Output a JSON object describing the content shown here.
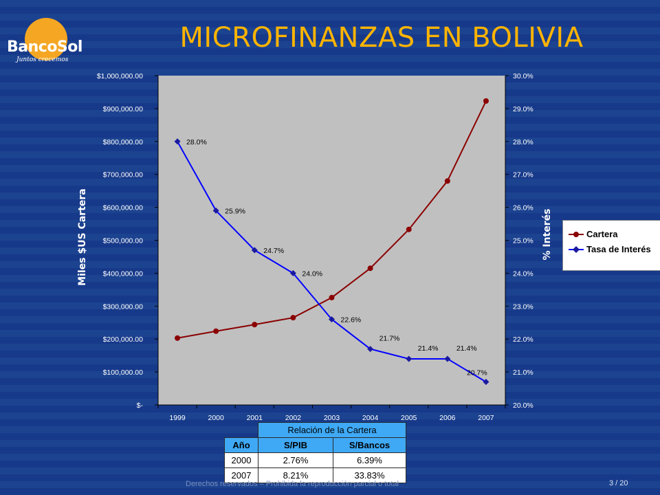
{
  "slide": {
    "title": "MICROFINANZAS EN BOLIVIA",
    "logo_name": "BancoSol",
    "logo_tagline": "Juntos crecemos",
    "footer": "Derechos reservados – Prohibida la reproducción parcial o total",
    "page_number": "3 / 20"
  },
  "colors": {
    "background": "#1a3f8c",
    "title": "#ffb400",
    "plot_area": "#c0c0c0",
    "cartera": "#8b0000",
    "tasa": "#0000ff",
    "table_header": "#3fa9f5"
  },
  "chart_data": {
    "type": "line",
    "categories": [
      "1999",
      "2000",
      "2001",
      "2002",
      "2003",
      "2004",
      "2005",
      "2006",
      "2007"
    ],
    "ylabel": "Miles $US Cartera",
    "y2label": "% Interés",
    "ylim": [
      0,
      1000000
    ],
    "y2lim": [
      20.0,
      30.0
    ],
    "y_ticks": [
      "$-",
      "$100,000.00",
      "$200,000.00",
      "$300,000.00",
      "$400,000.00",
      "$500,000.00",
      "$600,000.00",
      "$700,000.00",
      "$800,000.00",
      "$900,000.00",
      "$1,000,000.00"
    ],
    "y2_ticks": [
      "20.0%",
      "21.0%",
      "22.0%",
      "23.0%",
      "24.0%",
      "25.0%",
      "26.0%",
      "27.0%",
      "28.0%",
      "29.0%",
      "30.0%"
    ],
    "grid": false,
    "legend_position": "right",
    "series": [
      {
        "name": "Cartera",
        "axis": "left",
        "marker": "circle",
        "values": [
          203000,
          224000,
          244000,
          265000,
          326000,
          415000,
          533000,
          680000,
          923000
        ]
      },
      {
        "name": "Tasa de Interés",
        "axis": "right",
        "marker": "diamond",
        "values": [
          28.0,
          25.9,
          24.7,
          24.0,
          22.6,
          21.7,
          21.4,
          21.4,
          20.7
        ],
        "data_labels": [
          "28.0%",
          "25.9%",
          "24.7%",
          "24.0%",
          "22.6%",
          "21.7%",
          "21.4%",
          "21.4%",
          "20.7%"
        ]
      }
    ]
  },
  "ratio_table": {
    "caption": "Relación de la Cartera",
    "headers": [
      "Año",
      "S/PIB",
      "S/Bancos"
    ],
    "rows": [
      [
        "2000",
        "2.76%",
        "6.39%"
      ],
      [
        "2007",
        "8.21%",
        "33.83%"
      ]
    ]
  }
}
